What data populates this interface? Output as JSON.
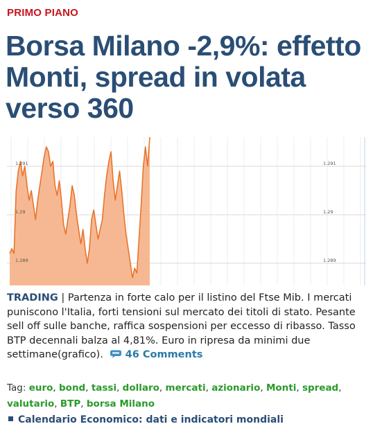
{
  "section_label": "PRIMO PIANO",
  "headline": "Borsa Milano -2,9%: effetto Monti, spread in volata verso 360",
  "chart_data": {
    "type": "area",
    "y_ticks": [
      "1.291",
      "1.29",
      "1.289"
    ],
    "ylim": [
      1.2886,
      1.2916
    ],
    "y_tick_values": [
      1.291,
      1.29,
      1.289
    ],
    "values": [
      1.2892,
      1.2893,
      1.2892,
      1.2905,
      1.2909,
      1.2911,
      1.2908,
      1.291,
      1.2906,
      1.2903,
      1.2905,
      1.2902,
      1.2899,
      1.2903,
      1.2906,
      1.2909,
      1.2912,
      1.2914,
      1.2913,
      1.291,
      1.2911,
      1.2906,
      1.2904,
      1.2907,
      1.2903,
      1.2898,
      1.2896,
      1.2899,
      1.2902,
      1.2906,
      1.2904,
      1.29,
      1.2897,
      1.2894,
      1.2897,
      1.2893,
      1.289,
      1.2893,
      1.2899,
      1.2901,
      1.2898,
      1.2895,
      1.2897,
      1.2899,
      1.2904,
      1.2908,
      1.2911,
      1.2913,
      1.2907,
      1.2903,
      1.2906,
      1.2909,
      1.2905,
      1.29,
      1.2896,
      1.2893,
      1.289,
      1.2887,
      1.2889,
      1.2888,
      1.2895,
      1.2902,
      1.291,
      1.2914,
      1.291,
      1.2916
    ],
    "color": "#f6b48c",
    "line_color": "#e8742c",
    "grid": true
  },
  "summary": {
    "kicker": "TRADING",
    "text": " | Partenza in forte calo per il listino del Ftse Mib. I mercati puniscono l'Italia, forti tensioni sul mercato dei titoli di stato. Pesante sell off sulle banche, raffica sospensioni per eccesso di ribasso. Tasso BTP decennali balza al 4,81%. Euro in ripresa da minimi due settimane(grafico).",
    "comments_label": "46 Comments"
  },
  "tags": {
    "label": "Tag:",
    "items": [
      "euro",
      "bond",
      "tassi",
      "dollaro",
      "mercati",
      "azionario",
      "Monti",
      "spread",
      "valutario",
      "BTP",
      "borsa Milano"
    ]
  },
  "related": {
    "label": "Calendario Economico: dati e indicatori mondiali"
  },
  "colors": {
    "section": "#c8141e",
    "headline": "#2a4e75",
    "tag": "#2a9a2a",
    "comments": "#2a7aa8"
  }
}
